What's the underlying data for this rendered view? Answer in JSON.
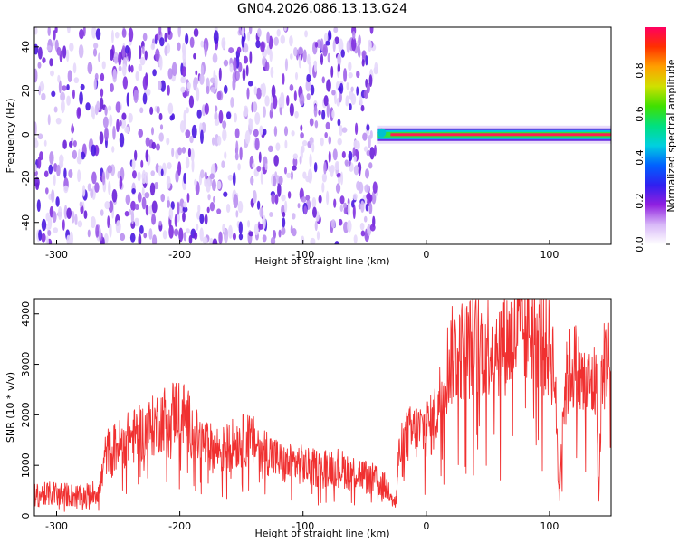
{
  "title": "GN04.2026.086.13.13.G24",
  "chart_data": [
    {
      "type": "heatmap",
      "title": "GN04.2026.086.13.13.G24",
      "xlabel": "Height of straight line (km)",
      "ylabel": "Frequency (Hz)",
      "xlim": [
        -318,
        150
      ],
      "ylim": [
        -50,
        49
      ],
      "xticks": [
        -300,
        -200,
        -100,
        0,
        100
      ],
      "yticks": [
        -40,
        -20,
        0,
        20,
        40
      ],
      "noise_region_x": [
        -318,
        -40
      ],
      "signal_line": {
        "x": [
          -40,
          150
        ],
        "frequency": 0
      },
      "colorbar": {
        "label": "Normalized spectral amplitude",
        "range": [
          0,
          1
        ],
        "ticks": [
          "0.0",
          "0.2",
          "0.4",
          "0.6",
          "0.8"
        ],
        "colors": [
          "#ffffff",
          "#d8b8f8",
          "#9020e0",
          "#3020f0",
          "#0060ff",
          "#00d0e0",
          "#00e080",
          "#40e000",
          "#d0e000",
          "#ffa000",
          "#ff3000",
          "#ff0060"
        ]
      },
      "grid": false
    },
    {
      "type": "line",
      "xlabel": "Height of straight line (km)",
      "ylabel": "SNR (10 * v/v)",
      "xlim": [
        -318,
        150
      ],
      "ylim": [
        0,
        4300
      ],
      "xticks": [
        -300,
        -200,
        -100,
        0,
        100
      ],
      "yticks": [
        0,
        1000,
        2000,
        3000,
        4000
      ],
      "series": [
        {
          "color": "#f03030",
          "x": [
            -318,
            -300,
            -280,
            -265,
            -260,
            -250,
            -240,
            -230,
            -220,
            -210,
            -200,
            -195,
            -185,
            -175,
            -165,
            -155,
            -145,
            -135,
            -125,
            -115,
            -105,
            -95,
            -85,
            -75,
            -65,
            -55,
            -45,
            -35,
            -28,
            -25,
            -22,
            -15,
            -5,
            5,
            10,
            15,
            20,
            30,
            40,
            50,
            60,
            70,
            80,
            85,
            90,
            95,
            100,
            104,
            106,
            108,
            110,
            115,
            120,
            125,
            130,
            135,
            138,
            140,
            142,
            145,
            150
          ],
          "y": [
            400,
            450,
            380,
            500,
            1250,
            1400,
            1550,
            1650,
            1800,
            2000,
            2100,
            1950,
            1500,
            1350,
            1300,
            1450,
            1500,
            1400,
            1200,
            1000,
            1050,
            950,
            950,
            1000,
            900,
            850,
            750,
            600,
            500,
            200,
            1250,
            1600,
            1700,
            1800,
            2200,
            2800,
            3150,
            3300,
            3350,
            3400,
            3400,
            3500,
            3650,
            3800,
            3600,
            3400,
            3300,
            3000,
            1500,
            300,
            2000,
            2800,
            3000,
            2700,
            2500,
            2600,
            2700,
            200,
            2500,
            3100,
            3000
          ]
        }
      ],
      "grid": false
    }
  ]
}
